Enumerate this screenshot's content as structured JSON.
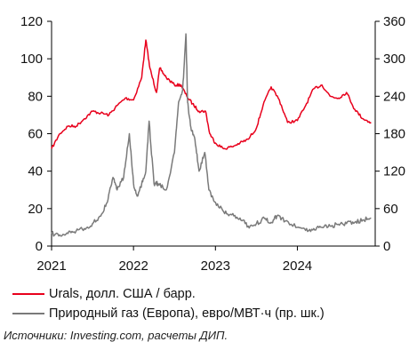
{
  "chart_data": {
    "type": "line",
    "x_ticks": [
      "2021",
      "2022",
      "2023",
      "2024"
    ],
    "y_left": {
      "ticks": [
        "0",
        "20",
        "40",
        "60",
        "80",
        "100",
        "120"
      ],
      "lim": [
        0,
        120
      ]
    },
    "y_right": {
      "ticks": [
        "0",
        "60",
        "120",
        "180",
        "240",
        "300",
        "360"
      ],
      "lim": [
        0,
        360
      ]
    },
    "series": [
      {
        "name": "Urals, долл. США / барр.",
        "color": "#e8001c",
        "axis": "left",
        "x": [
          2021.0,
          2021.1,
          2021.2,
          2021.3,
          2021.4,
          2021.5,
          2021.6,
          2021.7,
          2021.8,
          2021.9,
          2022.0,
          2022.1,
          2022.15,
          2022.2,
          2022.28,
          2022.32,
          2022.4,
          2022.5,
          2022.58,
          2022.65,
          2022.72,
          2022.8,
          2022.88,
          2022.93,
          2023.0,
          2023.1,
          2023.2,
          2023.3,
          2023.4,
          2023.5,
          2023.58,
          2023.68,
          2023.78,
          2023.88,
          2024.0,
          2024.1,
          2024.2,
          2024.3,
          2024.4,
          2024.5,
          2024.6,
          2024.7,
          2024.8,
          2024.9
        ],
        "y": [
          52,
          60,
          64,
          64,
          68,
          72,
          71,
          70,
          75,
          79,
          78,
          90,
          110,
          95,
          82,
          95,
          90,
          86,
          86,
          80,
          76,
          72,
          72,
          60,
          55,
          52,
          53,
          55,
          57,
          63,
          75,
          85,
          78,
          66,
          67,
          75,
          84,
          86,
          80,
          79,
          82,
          73,
          68,
          66
        ]
      },
      {
        "name": "Природный газ (Европа), евро/МВТ·ч (пр. шк.)",
        "color": "#7a7a7a",
        "axis": "right",
        "x": [
          2021.0,
          2021.1,
          2021.2,
          2021.3,
          2021.4,
          2021.5,
          2021.6,
          2021.68,
          2021.75,
          2021.8,
          2021.88,
          2021.95,
          2022.0,
          2022.05,
          2022.1,
          2022.15,
          2022.19,
          2022.25,
          2022.3,
          2022.4,
          2022.5,
          2022.55,
          2022.6,
          2022.64,
          2022.66,
          2022.7,
          2022.75,
          2022.8,
          2022.87,
          2022.92,
          2023.0,
          2023.1,
          2023.2,
          2023.3,
          2023.4,
          2023.5,
          2023.6,
          2023.68,
          2023.75,
          2023.85,
          2024.0,
          2024.1,
          2024.2,
          2024.3,
          2024.4,
          2024.5,
          2024.6,
          2024.7,
          2024.8,
          2024.9
        ],
        "y": [
          20,
          18,
          20,
          24,
          28,
          36,
          48,
          70,
          110,
          90,
          110,
          180,
          100,
          80,
          100,
          120,
          200,
          100,
          100,
          90,
          150,
          230,
          250,
          340,
          230,
          190,
          170,
          120,
          150,
          90,
          70,
          55,
          50,
          45,
          32,
          36,
          44,
          38,
          48,
          40,
          30,
          25,
          28,
          30,
          32,
          35,
          36,
          38,
          42,
          45
        ]
      }
    ],
    "grid": false,
    "legend_position": "bottom"
  },
  "legend": {
    "urals": "Urals, долл. США / барр.",
    "gas": "Природный газ (Европа), евро/МВТ·ч (пр. шк.)"
  },
  "source": "Источники: Investing.com, расчеты ДИП."
}
